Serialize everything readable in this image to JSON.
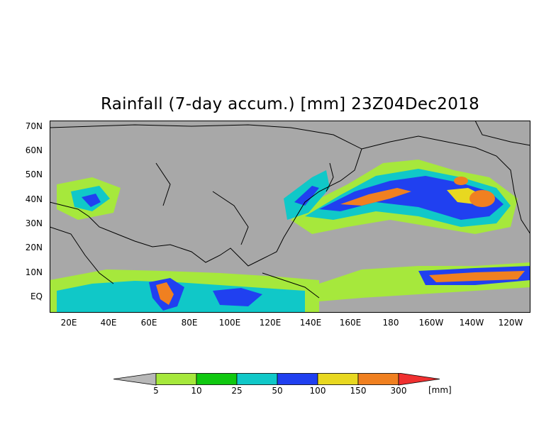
{
  "title": "Rainfall (7-day accum.) [mm] 23Z04Dec2018",
  "y_ticks": [
    "70N",
    "60N",
    "50N",
    "40N",
    "30N",
    "20N",
    "10N",
    "EQ"
  ],
  "x_ticks": [
    "20E",
    "40E",
    "60E",
    "80E",
    "100E",
    "120E",
    "140E",
    "160E",
    "180",
    "160W",
    "140W",
    "120W"
  ],
  "colorbar": {
    "levels": [
      "5",
      "10",
      "25",
      "50",
      "100",
      "150",
      "300"
    ],
    "unit": "[mm]",
    "colors": [
      "#b8b8b8",
      "#a6e83c",
      "#10c810",
      "#10c8c8",
      "#2040f0",
      "#e8d820",
      "#f08020",
      "#f03030"
    ]
  },
  "colors": {
    "land": "#a8a8a8",
    "ocean": "#a8a8a8",
    "coast": "#000000"
  }
}
